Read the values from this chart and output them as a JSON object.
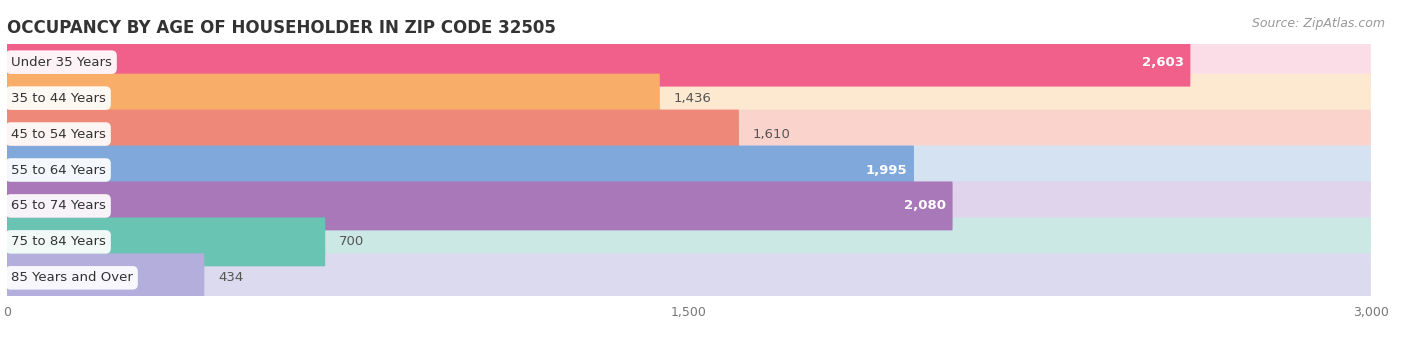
{
  "title": "OCCUPANCY BY AGE OF HOUSEHOLDER IN ZIP CODE 32505",
  "source": "Source: ZipAtlas.com",
  "categories": [
    "Under 35 Years",
    "35 to 44 Years",
    "45 to 54 Years",
    "55 to 64 Years",
    "65 to 74 Years",
    "75 to 84 Years",
    "85 Years and Over"
  ],
  "values": [
    2603,
    1436,
    1610,
    1995,
    2080,
    700,
    434
  ],
  "bar_colors": [
    "#F0608A",
    "#F8AD68",
    "#EE8878",
    "#80A8DA",
    "#A878B8",
    "#6AC4B4",
    "#B4AEDC"
  ],
  "bar_bg_colors": [
    "#FBDDE8",
    "#FDE8D0",
    "#FAD4CC",
    "#D4E2F2",
    "#E0D4EC",
    "#CCE8E4",
    "#DCDAEE"
  ],
  "value_inside": [
    true,
    false,
    false,
    true,
    true,
    false,
    false
  ],
  "xlim": [
    0,
    3000
  ],
  "xticks": [
    0,
    1500,
    3000
  ],
  "title_fontsize": 12,
  "source_fontsize": 9,
  "label_fontsize": 9.5,
  "value_fontsize": 9.5,
  "background_color": "#ffffff"
}
